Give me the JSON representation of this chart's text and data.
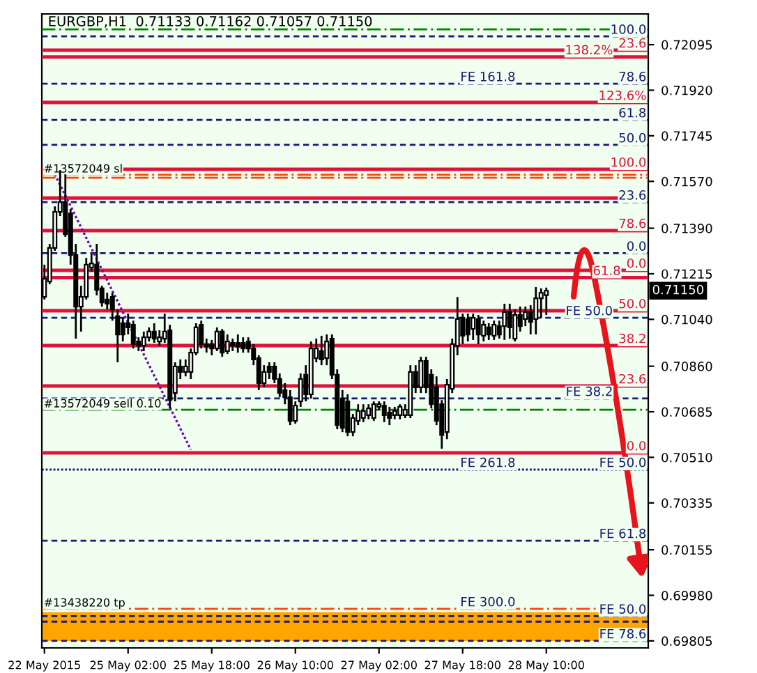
{
  "chart_data": {
    "type": "candlestick",
    "title": "EURGBP,H1  0.71133 0.71162 0.71057 0.71150",
    "categories": [
      "22 May 2015",
      null,
      null,
      null,
      null,
      null,
      null,
      null,
      null,
      null,
      null,
      null,
      null,
      null,
      null,
      null,
      "25 May 02:00",
      null,
      null,
      null,
      null,
      null,
      null,
      null,
      null,
      null,
      null,
      null,
      null,
      null,
      null,
      null,
      "25 May 18:00",
      null,
      null,
      null,
      null,
      null,
      null,
      null,
      null,
      null,
      null,
      null,
      null,
      null,
      null,
      null,
      "26 May 10:00",
      null,
      null,
      null,
      null,
      null,
      null,
      null,
      null,
      null,
      null,
      null,
      null,
      null,
      null,
      null,
      "27 May 02:00",
      null,
      null,
      null,
      null,
      null,
      null,
      null,
      null,
      null,
      null,
      null,
      null,
      null,
      null,
      null,
      "27 May 18:00",
      null,
      null,
      null,
      null,
      null,
      null,
      null,
      null,
      null,
      null,
      null,
      null,
      null,
      null,
      null,
      "28 May 10:00",
      null,
      null,
      null,
      null,
      null,
      null,
      null,
      null,
      null,
      null,
      null,
      null,
      null,
      null,
      null,
      null,
      null,
      null,
      null
    ],
    "series": [
      {
        "color": "#000000",
        "ohlc": [
          [
            0.71126,
            0.7125,
            0.71116,
            0.71196
          ],
          [
            0.71185,
            0.7133,
            0.71175,
            0.71314
          ],
          [
            0.71314,
            0.71474,
            0.71303,
            0.71453
          ],
          [
            0.71453,
            0.71613,
            0.71437,
            0.7149
          ],
          [
            0.7149,
            0.71597,
            0.71357,
            0.71367
          ],
          [
            0.71447,
            0.71464,
            0.7125,
            0.71287
          ],
          [
            0.71287,
            0.7133,
            0.70966,
            0.71089
          ],
          [
            0.71089,
            0.71169,
            0.70993,
            0.71126
          ],
          [
            0.71126,
            0.71276,
            0.71116,
            0.7125
          ],
          [
            0.71239,
            0.71292,
            0.71223,
            0.71255
          ],
          [
            0.7125,
            0.7133,
            0.71132,
            0.71153
          ],
          [
            0.71159,
            0.71169,
            0.71089,
            0.71105
          ],
          [
            0.71116,
            0.71142,
            0.71078,
            0.711
          ],
          [
            0.71126,
            0.71142,
            0.71035,
            0.71078
          ],
          [
            0.71052,
            0.71078,
            0.70875,
            0.70982
          ],
          [
            0.71025,
            0.71046,
            0.70955,
            0.70982
          ],
          [
            0.71025,
            0.71062,
            0.70982,
            0.71009
          ],
          [
            0.71019,
            0.71035,
            0.70928,
            0.70945
          ],
          [
            0.70955,
            0.70971,
            0.70918,
            0.70939
          ],
          [
            0.70939,
            0.70993,
            0.70918,
            0.70971
          ],
          [
            0.70971,
            0.71009,
            0.70955,
            0.70993
          ],
          [
            0.70993,
            0.71025,
            0.7095,
            0.70966
          ],
          [
            0.70955,
            0.70998,
            0.70939,
            0.70971
          ],
          [
            0.70966,
            0.71062,
            0.7095,
            0.70993
          ],
          [
            0.70998,
            0.71019,
            0.70698,
            0.7073
          ],
          [
            0.70757,
            0.70875,
            0.70725,
            0.70859
          ],
          [
            0.70859,
            0.70886,
            0.70811,
            0.70838
          ],
          [
            0.70838,
            0.70886,
            0.70821,
            0.70859
          ],
          [
            0.70838,
            0.70928,
            0.70811,
            0.70912
          ],
          [
            0.70912,
            0.71025,
            0.70902,
            0.71009
          ],
          [
            0.71019,
            0.71035,
            0.70928,
            0.70945
          ],
          [
            0.70945,
            0.70966,
            0.70912,
            0.70934
          ],
          [
            0.70945,
            0.70961,
            0.70902,
            0.70928
          ],
          [
            0.70928,
            0.71009,
            0.70918,
            0.70993
          ],
          [
            0.70993,
            0.71003,
            0.70896,
            0.70912
          ],
          [
            0.70918,
            0.70982,
            0.70907,
            0.70955
          ],
          [
            0.7095,
            0.70966,
            0.70918,
            0.70939
          ],
          [
            0.7095,
            0.70982,
            0.70912,
            0.70934
          ],
          [
            0.7095,
            0.70971,
            0.70912,
            0.70928
          ],
          [
            0.70955,
            0.70971,
            0.70912,
            0.70928
          ],
          [
            0.70928,
            0.70945,
            0.70864,
            0.70886
          ],
          [
            0.70891,
            0.70902,
            0.70768,
            0.70795
          ],
          [
            0.70795,
            0.70864,
            0.70779,
            0.70838
          ],
          [
            0.70859,
            0.70875,
            0.70811,
            0.70838
          ],
          [
            0.70859,
            0.70875,
            0.70795,
            0.70811
          ],
          [
            0.70811,
            0.70832,
            0.70741,
            0.70757
          ],
          [
            0.70768,
            0.70795,
            0.70714,
            0.70741
          ],
          [
            0.70741,
            0.70768,
            0.70634,
            0.7065
          ],
          [
            0.7065,
            0.70725,
            0.70639,
            0.70709
          ],
          [
            0.70725,
            0.70832,
            0.70704,
            0.70811
          ],
          [
            0.70827,
            0.70864,
            0.70725,
            0.70752
          ],
          [
            0.70752,
            0.70955,
            0.70736,
            0.70928
          ],
          [
            0.70891,
            0.70966,
            0.70875,
            0.70928
          ],
          [
            0.70918,
            0.70977,
            0.70864,
            0.70886
          ],
          [
            0.70891,
            0.70982,
            0.70864,
            0.70955
          ],
          [
            0.70966,
            0.70982,
            0.70811,
            0.70827
          ],
          [
            0.70827,
            0.70848,
            0.70618,
            0.70634
          ],
          [
            0.70736,
            0.70768,
            0.70607,
            0.70623
          ],
          [
            0.70725,
            0.70752,
            0.70591,
            0.70607
          ],
          [
            0.70607,
            0.70677,
            0.70591,
            0.70661
          ],
          [
            0.7065,
            0.70714,
            0.70634,
            0.70688
          ],
          [
            0.70661,
            0.70714,
            0.70645,
            0.70688
          ],
          [
            0.70672,
            0.70714,
            0.70656,
            0.70698
          ],
          [
            0.70661,
            0.70725,
            0.7065,
            0.70714
          ],
          [
            0.70704,
            0.70725,
            0.70693,
            0.70714
          ],
          [
            0.70709,
            0.70725,
            0.70645,
            0.70672
          ],
          [
            0.70682,
            0.70704,
            0.70634,
            0.70661
          ],
          [
            0.70672,
            0.70704,
            0.70656,
            0.70688
          ],
          [
            0.70672,
            0.70714,
            0.70656,
            0.70704
          ],
          [
            0.70672,
            0.70714,
            0.70661,
            0.70693
          ],
          [
            0.70672,
            0.70864,
            0.70661,
            0.70838
          ],
          [
            0.70838,
            0.70864,
            0.70757,
            0.70779
          ],
          [
            0.70779,
            0.70896,
            0.70757,
            0.7088
          ],
          [
            0.7088,
            0.70896,
            0.70757,
            0.70779
          ],
          [
            0.70827,
            0.70848,
            0.70698,
            0.70714
          ],
          [
            0.70779,
            0.70821,
            0.70634,
            0.7065
          ],
          [
            0.70714,
            0.7073,
            0.70543,
            0.70596
          ],
          [
            0.70607,
            0.70811,
            0.7058,
            0.70789
          ],
          [
            0.70773,
            0.70966,
            0.70757,
            0.70945
          ],
          [
            0.70939,
            0.71126,
            0.70902,
            0.71041
          ],
          [
            0.71046,
            0.71062,
            0.70945,
            0.70977
          ],
          [
            0.71041,
            0.71062,
            0.70955,
            0.70982
          ],
          [
            0.71003,
            0.71062,
            0.70961,
            0.71046
          ],
          [
            0.71041,
            0.71057,
            0.70945,
            0.70982
          ],
          [
            0.70977,
            0.71035,
            0.70955,
            0.71019
          ],
          [
            0.71009,
            0.71025,
            0.70961,
            0.70982
          ],
          [
            0.70977,
            0.71035,
            0.70961,
            0.71019
          ],
          [
            0.71014,
            0.71035,
            0.70966,
            0.70982
          ],
          [
            0.71014,
            0.711,
            0.70961,
            0.71068
          ],
          [
            0.71068,
            0.711,
            0.70966,
            0.71009
          ],
          [
            0.70966,
            0.71078,
            0.70955,
            0.71057
          ],
          [
            0.71057,
            0.71089,
            0.70993,
            0.71014
          ],
          [
            0.71041,
            0.71089,
            0.71014,
            0.71068
          ],
          [
            0.71068,
            0.71094,
            0.70982,
            0.7103
          ],
          [
            0.71041,
            0.71164,
            0.70982,
            0.71121
          ],
          [
            0.71121,
            0.71159,
            0.71046,
            0.71142
          ],
          [
            0.71133,
            0.71162,
            0.71057,
            0.7115
          ],
          null,
          null,
          null,
          null,
          null,
          null,
          null,
          null,
          null,
          null,
          null,
          null,
          null,
          null,
          null,
          null,
          null,
          null,
          null
        ]
      },
      {
        "type": "line",
        "color": "#6a0dad",
        "line_style": "dotted",
        "values": [
          null,
          null,
          0.71597,
          null,
          null,
          null,
          null,
          null,
          null,
          null,
          null,
          null,
          null,
          null,
          null,
          null,
          null,
          null,
          null,
          null,
          null,
          null,
          null,
          null,
          null,
          null,
          null,
          null,
          0.70539,
          null,
          null,
          null,
          null,
          null,
          null,
          null,
          null,
          null,
          null,
          null,
          null,
          null,
          null,
          null,
          null,
          null,
          null,
          null,
          null,
          null,
          null,
          null,
          null,
          null,
          null,
          null,
          null,
          null,
          null,
          null,
          null,
          null,
          null,
          null,
          null,
          null,
          null,
          null,
          null,
          null,
          null,
          null,
          null,
          null,
          null,
          null,
          null,
          null,
          null,
          null,
          null,
          null,
          null,
          null,
          null,
          null,
          null,
          null,
          null,
          null,
          null,
          null,
          null,
          null,
          null,
          null,
          null,
          null,
          null,
          null,
          null,
          null,
          null,
          null,
          null,
          null,
          null,
          null,
          null,
          null,
          null,
          null,
          null,
          null,
          null,
          null
        ]
      }
    ],
    "ylim": [
      0.69778,
      0.72213
    ],
    "yticks": [
      {
        "value": 0.72095,
        "label": "0.72095"
      },
      {
        "value": 0.7192,
        "label": "0.71920"
      },
      {
        "value": 0.71745,
        "label": "0.71745"
      },
      {
        "value": 0.7157,
        "label": "0.71570"
      },
      {
        "value": 0.7139,
        "label": "0.71390"
      },
      {
        "value": 0.71215,
        "label": "0.71215"
      },
      {
        "value": 0.7104,
        "label": "0.71040"
      },
      {
        "value": 0.7086,
        "label": "0.70860"
      },
      {
        "value": 0.70685,
        "label": "0.70685"
      },
      {
        "value": 0.7051,
        "label": "0.70510"
      },
      {
        "value": 0.70335,
        "label": "0.70335"
      },
      {
        "value": 0.70155,
        "label": "0.70155"
      },
      {
        "value": 0.6998,
        "label": "0.69980"
      },
      {
        "value": 0.69805,
        "label": "0.69805"
      }
    ],
    "bands": [
      {
        "axis": "y",
        "from": 0.69805,
        "to": 0.69915,
        "color": "#ffa500"
      }
    ],
    "ref_lines": [
      {
        "axis": "y",
        "value": 0.72154,
        "color": "#008000",
        "line_style": "dashdot"
      },
      {
        "axis": "y",
        "value": 0.72127,
        "color": "#191970",
        "line_style": "dashed"
      },
      {
        "axis": "y",
        "value": 0.72074,
        "color": "#dc143c",
        "line_style": "solid"
      },
      {
        "axis": "y",
        "value": 0.72048,
        "color": "#dc143c",
        "line_style": "solid"
      },
      {
        "axis": "y",
        "value": 0.71945,
        "color": "#191970",
        "line_style": "dashed"
      },
      {
        "axis": "y",
        "value": 0.71873,
        "color": "#dc143c",
        "line_style": "solid"
      },
      {
        "axis": "y",
        "value": 0.71806,
        "color": "#191970",
        "line_style": "dashed"
      },
      {
        "axis": "y",
        "value": 0.7171,
        "color": "#191970",
        "line_style": "dashed"
      },
      {
        "axis": "y",
        "value": 0.71616,
        "color": "#dc143c",
        "line_style": "solid"
      },
      {
        "axis": "y",
        "value": 0.71595,
        "label": "#13572049 sl",
        "color": "#ff4500",
        "line_style": "dashdot"
      },
      {
        "axis": "y",
        "value": 0.71584,
        "color": "#ff4500",
        "line_style": "dashdot"
      },
      {
        "axis": "y",
        "value": 0.71506,
        "color": "#dc143c",
        "line_style": "solid"
      },
      {
        "axis": "y",
        "value": 0.7149,
        "color": "#191970",
        "line_style": "dashed"
      },
      {
        "axis": "y",
        "value": 0.71381,
        "color": "#dc143c",
        "line_style": "solid"
      },
      {
        "axis": "y",
        "value": 0.71294,
        "color": "#191970",
        "line_style": "dashed"
      },
      {
        "axis": "y",
        "value": 0.71228,
        "color": "#dc143c",
        "line_style": "solid"
      },
      {
        "axis": "y",
        "value": 0.712,
        "color": "#dc143c",
        "line_style": "solid"
      },
      {
        "axis": "y",
        "value": 0.71073,
        "color": "#dc143c",
        "line_style": "solid"
      },
      {
        "axis": "y",
        "value": 0.71046,
        "color": "#191970",
        "line_style": "dashed"
      },
      {
        "axis": "y",
        "value": 0.70939,
        "color": "#dc143c",
        "line_style": "solid"
      },
      {
        "axis": "y",
        "value": 0.70784,
        "color": "#dc143c",
        "line_style": "solid"
      },
      {
        "axis": "y",
        "value": 0.70736,
        "color": "#191970",
        "line_style": "dashed"
      },
      {
        "axis": "y",
        "value": 0.70693,
        "label": "#13572049 sell 0.10",
        "color": "#008000",
        "line_style": "dashdot"
      },
      {
        "axis": "y",
        "value": 0.70527,
        "color": "#dc143c",
        "line_style": "solid"
      },
      {
        "axis": "y",
        "value": 0.70463,
        "color": "#191970",
        "line_style": "dotted"
      },
      {
        "axis": "y",
        "value": 0.7019,
        "color": "#191970",
        "line_style": "dashed"
      },
      {
        "axis": "y",
        "value": 0.69928,
        "label": "#13438220 tp",
        "color": "#ff4500",
        "line_style": "dashdot"
      },
      {
        "axis": "y",
        "value": 0.699,
        "color": "#191970",
        "line_style": "dashed"
      },
      {
        "axis": "y",
        "value": 0.69879,
        "color": "#191970",
        "line_style": "dashed"
      },
      {
        "axis": "y",
        "value": 0.69805,
        "color": "#191970",
        "line_style": "dashed"
      }
    ],
    "annotations": [
      "0.71150",
      {
        "text": "100.0",
        "y": 0.72127
      },
      {
        "text": "23.6",
        "y": 0.72074
      },
      {
        "text": "138.2%",
        "y": 0.72048
      },
      {
        "text": "78.6",
        "y": 0.71945
      },
      {
        "text": "123.6%",
        "y": 0.71873
      },
      {
        "text": "61.8",
        "y": 0.71806
      },
      {
        "text": "50.0",
        "y": 0.7171
      },
      {
        "text": "100.0",
        "y": 0.71616
      },
      {
        "text": "23.6",
        "y": 0.7149
      },
      {
        "text": "78.6",
        "y": 0.71381
      },
      {
        "text": "0.0",
        "y": 0.71294
      },
      {
        "text": "0.0",
        "y": 0.71228
      },
      {
        "text": "61.8",
        "y": 0.712
      },
      {
        "text": "50.0",
        "y": 0.71073
      },
      {
        "text": "FE 50.0",
        "y": 0.71046
      },
      {
        "text": "38.2",
        "y": 0.70939
      },
      {
        "text": "23.6",
        "y": 0.70784
      },
      {
        "text": "FE 38.2",
        "y": 0.70736
      },
      {
        "text": "0.0",
        "y": 0.70527
      },
      {
        "text": "FE 50.0",
        "y": 0.70463
      },
      {
        "text": "FE 61.8",
        "y": 0.7019
      },
      {
        "text": "FE 50.0",
        "y": 0.699
      },
      {
        "text": "FE 78.6",
        "y": 0.69805
      },
      {
        "text": "FE 161.8",
        "y": 0.71945
      },
      {
        "text": "FE 261.8",
        "y": 0.70463
      },
      {
        "text": "FE 300.0",
        "y": 0.69928
      }
    ]
  }
}
